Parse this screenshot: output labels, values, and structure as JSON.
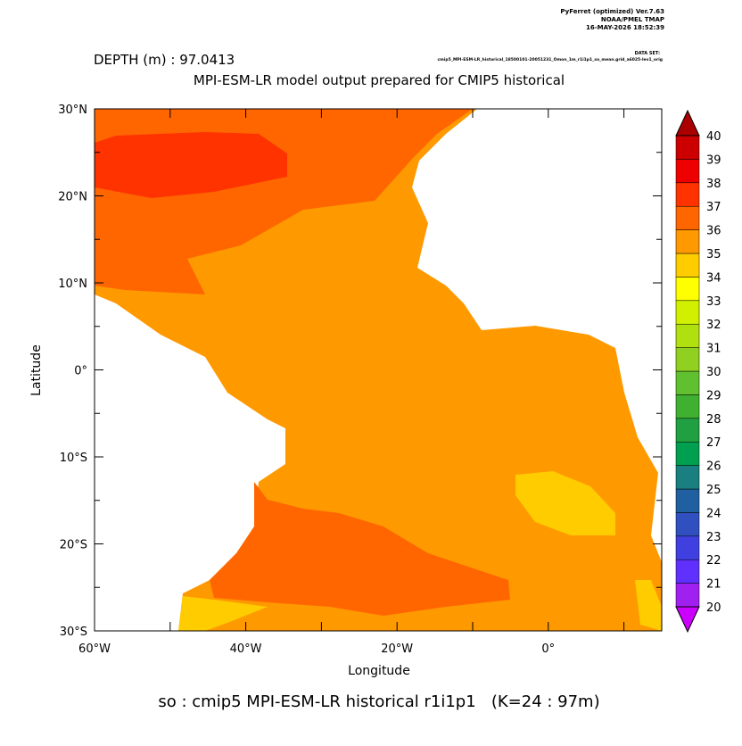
{
  "header": {
    "program": "PyFerret (optimized) Ver.7.63",
    "org": "NOAA/PMEL TMAP",
    "date": "16-MAY-2026 18:52:39",
    "dataset_label": "DATA SET:",
    "dataset": "cmip5_MPI-ESM-LR_historical_18500101-20051231_Omon_1m_r1i1p1_so_mean.grid_a6025-lev1_orig"
  },
  "chart_data": {
    "type": "map",
    "depth": "DEPTH (m) : 97.0413",
    "title": "MPI-ESM-LR model output prepared for CMIP5 historical",
    "xlabel": "Longitude",
    "ylabel": "Latitude",
    "footer": "so : cmip5 MPI-ESM-LR historical r1i1p1   (K=24 : 97m)",
    "xlim": [
      -60,
      15
    ],
    "ylim": [
      -30,
      30
    ],
    "xticks": [
      {
        "value": -60,
        "label": "60°W"
      },
      {
        "value": -40,
        "label": "40°W"
      },
      {
        "value": -20,
        "label": "20°W"
      },
      {
        "value": 0,
        "label": "0°"
      }
    ],
    "xminor": [
      -50,
      -30,
      -10,
      10
    ],
    "yticks": [
      {
        "value": 30,
        "label": "30°N"
      },
      {
        "value": 20,
        "label": "20°N"
      },
      {
        "value": 10,
        "label": "10°N"
      },
      {
        "value": 0,
        "label": "0°"
      },
      {
        "value": -10,
        "label": "10°S"
      },
      {
        "value": -20,
        "label": "20°S"
      },
      {
        "value": -30,
        "label": "30°S"
      }
    ],
    "yminor": [
      25,
      15,
      5,
      -5,
      -15,
      -25
    ],
    "colorbar": {
      "levels": [
        20,
        21,
        22,
        23,
        24,
        25,
        26,
        27,
        28,
        29,
        30,
        31,
        32,
        33,
        34,
        35,
        36,
        37,
        38,
        39,
        40
      ],
      "colors": [
        "#a020f0",
        "#6030ff",
        "#4040e0",
        "#3050c0",
        "#2060a0",
        "#1a7f80",
        "#00a050",
        "#20a040",
        "#40b030",
        "#60c030",
        "#90d020",
        "#b0e010",
        "#d0f000",
        "#ffff00",
        "#ffcc00",
        "#ff9900",
        "#ff6600",
        "#ff3300",
        "#ee0000",
        "#cc0000"
      ],
      "under_color": "#cc00ff",
      "over_color": "#aa0000"
    }
  }
}
